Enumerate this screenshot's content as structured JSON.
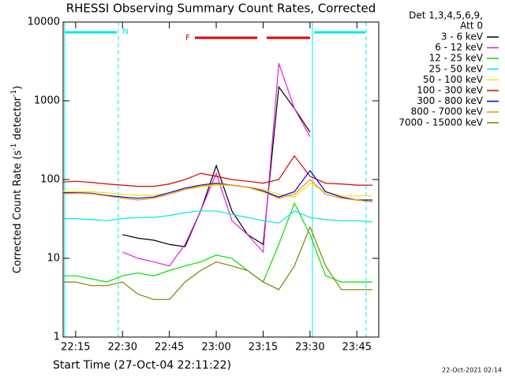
{
  "chart_data": {
    "type": "line",
    "title": "RHESSI Observing Summary Count Rates, Corrected",
    "ylabel_parts": [
      "Corrected Count Rate (s",
      "-1",
      " detector",
      "-1",
      ")"
    ],
    "xlabel": "Start Time (27-Oct-04 22:11:22)",
    "legend_header": [
      "Det 1,3,4,5,6,9,",
      "Att 0"
    ],
    "footer": "22-Oct-2021 02:14",
    "annotations": [
      "N",
      "F"
    ],
    "ylog": true,
    "ylim": [
      1,
      10000
    ],
    "yticks": [
      1,
      10,
      100,
      1000,
      10000
    ],
    "xlim": [
      1331,
      1432
    ],
    "xticks": [
      {
        "value": 1335,
        "label": "22:15"
      },
      {
        "value": 1350,
        "label": "22:30"
      },
      {
        "value": 1365,
        "label": "22:45"
      },
      {
        "value": 1380,
        "label": "23:00"
      },
      {
        "value": 1395,
        "label": "23:15"
      },
      {
        "value": 1410,
        "label": "23:30"
      },
      {
        "value": 1425,
        "label": "23:45"
      }
    ],
    "x": [
      1331,
      1335,
      1340,
      1345,
      1350,
      1355,
      1360,
      1365,
      1370,
      1375,
      1380,
      1385,
      1390,
      1395,
      1400,
      1405,
      1410,
      1415,
      1420,
      1425,
      1430
    ],
    "series": [
      {
        "name": "3 - 6 keV",
        "color": "#000000",
        "values": [
          null,
          null,
          null,
          null,
          20,
          18,
          17,
          15,
          14,
          40,
          150,
          40,
          20,
          15,
          1500,
          800,
          400,
          null,
          null,
          null,
          null
        ]
      },
      {
        "name": "6 - 12 keV",
        "color": "#e020e0",
        "values": [
          null,
          null,
          null,
          null,
          12,
          10,
          9,
          8,
          15,
          40,
          120,
          30,
          20,
          12,
          3000,
          800,
          350,
          null,
          null,
          null,
          null
        ]
      },
      {
        "name": "12 - 25 keV",
        "color": "#00e000",
        "values": [
          6,
          6,
          5.5,
          5,
          6,
          6.5,
          6,
          7,
          8,
          9,
          11,
          10,
          7,
          5,
          15,
          50,
          20,
          6,
          5,
          5,
          5
        ]
      },
      {
        "name": "25 - 50 keV",
        "color": "#00e8e8",
        "values": [
          32,
          32,
          31,
          30,
          32,
          33,
          33,
          35,
          38,
          40,
          40,
          36,
          33,
          30,
          28,
          40,
          33,
          31,
          30,
          30,
          29
        ]
      },
      {
        "name": "50 - 100 keV",
        "color": "#e8e800",
        "values": [
          70,
          70,
          70,
          68,
          65,
          63,
          63,
          68,
          75,
          80,
          85,
          85,
          80,
          75,
          65,
          60,
          90,
          70,
          62,
          62,
          62
        ]
      },
      {
        "name": "100 - 300 keV",
        "color": "#e00000",
        "values": [
          93,
          95,
          92,
          88,
          85,
          82,
          82,
          88,
          100,
          120,
          110,
          100,
          95,
          90,
          100,
          200,
          110,
          90,
          88,
          85,
          85
        ]
      },
      {
        "name": "300 - 800 keV",
        "color": "#0000e0",
        "values": [
          68,
          68,
          67,
          63,
          60,
          58,
          60,
          68,
          78,
          85,
          90,
          85,
          80,
          72,
          60,
          70,
          130,
          70,
          60,
          55,
          55
        ]
      },
      {
        "name": "800 - 7000 keV",
        "color": "#ff8c00",
        "values": [
          66,
          67,
          66,
          62,
          58,
          55,
          58,
          65,
          75,
          83,
          88,
          85,
          80,
          70,
          58,
          65,
          100,
          65,
          58,
          55,
          52
        ]
      },
      {
        "name": "7000 - 15000 keV",
        "color": "#808000",
        "values": [
          5,
          5,
          4.5,
          4.5,
          5,
          3.5,
          3,
          3,
          5,
          7,
          9,
          8,
          7,
          5,
          4,
          8,
          25,
          8,
          4,
          4,
          4
        ]
      }
    ]
  }
}
